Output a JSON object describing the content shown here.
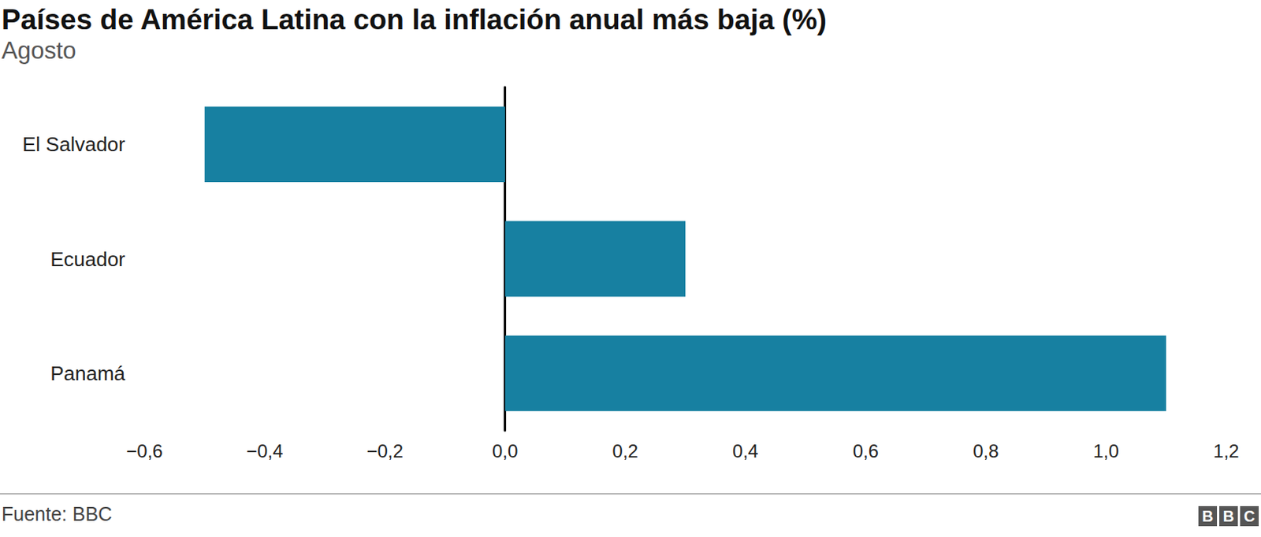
{
  "chart_data": {
    "type": "bar",
    "orientation": "horizontal",
    "title": "Países de América Latina con la inflación anual más baja (%)",
    "subtitle": "Agosto",
    "source": "Fuente: BBC",
    "logo": "BBC",
    "categories": [
      "El Salvador",
      "Ecuador",
      "Panamá"
    ],
    "values": [
      -0.5,
      0.3,
      1.1
    ],
    "color": "#1780a1",
    "xlim": [
      -0.6,
      1.2
    ],
    "xticks": [
      {
        "value": -0.6,
        "label": "−0,6"
      },
      {
        "value": -0.4,
        "label": "−0,4"
      },
      {
        "value": -0.2,
        "label": "−0,2"
      },
      {
        "value": 0,
        "label": "0,0"
      },
      {
        "value": 0.2,
        "label": "0,2"
      },
      {
        "value": 0.4,
        "label": "0,4"
      },
      {
        "value": 0.6,
        "label": "0,6"
      },
      {
        "value": 0.8,
        "label": "0,8"
      },
      {
        "value": 1.0,
        "label": "1,0"
      },
      {
        "value": 1.2,
        "label": "1,2"
      }
    ],
    "grid": false
  }
}
